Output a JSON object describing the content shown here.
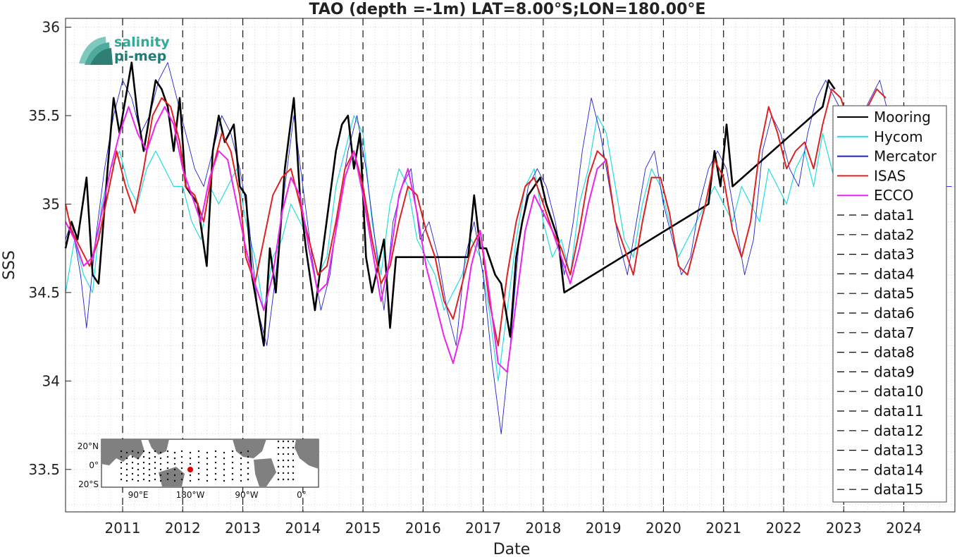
{
  "chart_data": {
    "type": "line",
    "title": "TAO (depth =-1m) LAT=8.00°S;LON=180.00°E",
    "xlabel": "Date",
    "ylabel": "SSS",
    "xlim": [
      2010.05,
      2024.85
    ],
    "ylim": [
      33.26,
      36.05
    ],
    "yticks": [
      33.5,
      34,
      34.5,
      35,
      35.5,
      36
    ],
    "xticks": [
      2011,
      2012,
      2013,
      2014,
      2015,
      2016,
      2017,
      2018,
      2019,
      2020,
      2021,
      2022,
      2023,
      2024
    ],
    "grid": "minor-dotted",
    "legend_position": "right",
    "vlines": [
      2011,
      2012,
      2013,
      2014,
      2015,
      2016,
      2017,
      2018,
      2019,
      2020,
      2021,
      2022,
      2023,
      2024
    ],
    "series": [
      {
        "name": "Mooring",
        "color": "#000000",
        "width": 2.6,
        "x": [
          2010.05,
          2010.15,
          2010.25,
          2010.4,
          2010.5,
          2010.6,
          2010.75,
          2010.85,
          2010.95,
          2011.05,
          2011.15,
          2011.25,
          2011.35,
          2011.45,
          2011.55,
          2011.65,
          2011.75,
          2011.85,
          2011.95,
          2012.05,
          2012.25,
          2012.4,
          2012.5,
          2012.6,
          2012.7,
          2012.85,
          2012.95,
          2013.05,
          2013.15,
          2013.25,
          2013.35,
          2013.45,
          2013.55,
          2013.7,
          2013.85,
          2013.95,
          2014.05,
          2014.2,
          2014.55,
          2014.65,
          2014.75,
          2014.85,
          2014.95,
          2015.05,
          2015.15,
          2015.25,
          2015.35,
          2015.45,
          2015.55,
          2016.75,
          2016.85,
          2016.95,
          2017.05,
          2017.2,
          2017.3,
          2017.45,
          2017.55,
          2017.65,
          2017.75,
          2017.85,
          2017.95,
          2018.05,
          2018.15,
          2018.25,
          2018.35,
          2020.75,
          2020.85,
          2020.95,
          2021.05,
          2021.15,
          2022.65,
          2022.75,
          2022.85
        ],
        "y": [
          34.75,
          34.9,
          34.8,
          35.15,
          34.6,
          34.55,
          35.2,
          35.6,
          35.4,
          35.6,
          35.8,
          35.5,
          35.3,
          35.5,
          35.7,
          35.65,
          35.55,
          35.3,
          35.6,
          35.1,
          35.0,
          34.65,
          35.3,
          35.5,
          35.35,
          35.45,
          35.1,
          35.05,
          34.6,
          34.4,
          34.2,
          34.75,
          34.5,
          35.2,
          35.6,
          35.05,
          34.75,
          34.4,
          35.3,
          35.45,
          35.5,
          35.2,
          35.4,
          34.7,
          34.5,
          34.65,
          34.8,
          34.3,
          34.7,
          34.7,
          35.05,
          34.75,
          34.75,
          34.6,
          34.55,
          34.25,
          34.7,
          34.9,
          35.05,
          35.1,
          35.15,
          35.0,
          34.9,
          34.8,
          34.5,
          35.0,
          35.3,
          35.1,
          35.45,
          35.1,
          35.55,
          35.7,
          35.65
        ]
      },
      {
        "name": "Hycom",
        "color": "#22dde0",
        "width": 1.2,
        "x": [
          2010.05,
          2010.2,
          2010.35,
          2010.5,
          2010.65,
          2010.8,
          2010.95,
          2011.1,
          2011.25,
          2011.4,
          2011.55,
          2011.7,
          2011.85,
          2012.0,
          2012.15,
          2012.3,
          2012.45,
          2012.6,
          2012.75,
          2012.9,
          2013.05,
          2013.2,
          2013.35,
          2013.5,
          2013.65,
          2013.8,
          2013.95,
          2014.1,
          2014.25,
          2014.4,
          2014.55,
          2014.7,
          2014.85,
          2015.0,
          2015.15,
          2015.3,
          2015.45,
          2015.6,
          2015.75,
          2015.9,
          2016.05,
          2016.2,
          2016.35,
          2016.5,
          2016.65,
          2016.8,
          2016.95,
          2017.1,
          2017.25,
          2017.4,
          2017.55,
          2017.7,
          2017.85,
          2018.0,
          2018.15,
          2018.3,
          2018.45,
          2018.6,
          2018.75,
          2018.9,
          2019.05,
          2019.2,
          2019.35,
          2019.5,
          2019.65,
          2019.8,
          2019.95,
          2020.1,
          2020.25,
          2020.4,
          2020.55,
          2020.7,
          2020.85,
          2021.0,
          2021.15,
          2021.3,
          2021.45,
          2021.6,
          2021.75,
          2021.9,
          2022.05,
          2022.2,
          2022.35,
          2022.5,
          2022.65,
          2022.8,
          2022.95,
          2023.1,
          2023.25,
          2023.4,
          2023.55,
          2023.7,
          2023.85
        ],
        "y": [
          34.5,
          34.8,
          34.6,
          34.5,
          35.0,
          35.2,
          35.3,
          35.1,
          35.0,
          35.2,
          35.3,
          35.2,
          35.1,
          35.1,
          34.9,
          34.8,
          35.1,
          35.0,
          35.1,
          35.2,
          34.9,
          34.7,
          34.4,
          34.7,
          34.8,
          35.0,
          34.9,
          34.8,
          34.6,
          34.7,
          35.1,
          35.3,
          35.5,
          35.4,
          34.9,
          34.6,
          35.0,
          35.2,
          35.1,
          34.8,
          34.7,
          34.6,
          34.4,
          34.5,
          34.6,
          34.8,
          34.7,
          34.4,
          34.0,
          34.4,
          34.8,
          35.1,
          35.2,
          34.9,
          34.7,
          34.8,
          34.6,
          35.0,
          35.2,
          35.5,
          35.4,
          35.1,
          34.8,
          34.7,
          35.0,
          35.2,
          35.1,
          34.9,
          34.7,
          34.8,
          34.9,
          35.0,
          35.1,
          35.0,
          34.9,
          35.1,
          35.0,
          34.9,
          35.2,
          35.1,
          35.0,
          35.2,
          35.3,
          35.1,
          35.4,
          35.2,
          35.0,
          35.1,
          35.2,
          35.0,
          35.3,
          35.2,
          35.1
        ]
      },
      {
        "name": "Mercator",
        "color": "#1f1fd6",
        "width": 0.9,
        "x": [
          2010.05,
          2010.15,
          2010.3,
          2010.4,
          2010.55,
          2010.7,
          2010.85,
          2011.0,
          2011.15,
          2011.3,
          2011.45,
          2011.6,
          2011.75,
          2011.9,
          2012.05,
          2012.2,
          2012.35,
          2012.5,
          2012.65,
          2012.8,
          2012.95,
          2013.1,
          2013.25,
          2013.4,
          2013.55,
          2013.7,
          2013.85,
          2014.0,
          2014.15,
          2014.3,
          2014.45,
          2014.6,
          2014.75,
          2014.9,
          2015.05,
          2015.2,
          2015.35,
          2015.5,
          2015.65,
          2015.8,
          2015.95,
          2016.1,
          2016.25,
          2016.4,
          2016.55,
          2016.7,
          2016.85,
          2017.0,
          2017.15,
          2017.3,
          2017.45,
          2017.6,
          2017.75,
          2017.9,
          2018.05,
          2018.2,
          2018.35,
          2018.5,
          2018.65,
          2018.8,
          2018.95,
          2019.1,
          2019.25,
          2019.4,
          2019.55,
          2019.7,
          2019.85,
          2020.0,
          2020.15,
          2020.3,
          2020.45,
          2020.6,
          2020.75,
          2020.9,
          2021.05,
          2021.2,
          2021.35,
          2021.5,
          2021.65,
          2021.8,
          2021.95,
          2022.1,
          2022.25,
          2022.4,
          2022.55,
          2022.7,
          2022.85,
          2023.0,
          2023.15,
          2023.3,
          2023.45,
          2023.6,
          2023.75,
          2023.9,
          2024.05,
          2024.2,
          2024.35,
          2024.5,
          2024.65,
          2024.8
        ],
        "y": [
          34.8,
          34.9,
          34.6,
          34.3,
          34.8,
          35.2,
          35.5,
          35.7,
          35.6,
          35.4,
          35.5,
          35.7,
          35.8,
          35.6,
          35.4,
          35.2,
          35.1,
          35.3,
          35.5,
          35.4,
          35.2,
          34.9,
          34.4,
          34.2,
          34.6,
          35.1,
          35.5,
          35.1,
          34.7,
          34.4,
          34.6,
          35.0,
          35.3,
          35.5,
          35.2,
          34.8,
          34.4,
          34.9,
          35.1,
          35.2,
          34.8,
          34.9,
          34.7,
          34.4,
          34.2,
          34.7,
          34.9,
          34.6,
          34.1,
          33.7,
          34.2,
          34.8,
          35.1,
          35.2,
          35.1,
          34.9,
          34.6,
          34.9,
          35.3,
          35.6,
          35.4,
          35.1,
          34.8,
          34.6,
          34.9,
          35.2,
          35.3,
          35.0,
          34.8,
          34.6,
          34.7,
          35.0,
          35.2,
          35.3,
          35.2,
          34.9,
          34.6,
          34.8,
          35.3,
          35.5,
          35.4,
          35.2,
          35.1,
          35.4,
          35.6,
          35.7,
          35.6,
          35.5,
          35.4,
          35.5,
          35.6,
          35.7,
          35.5,
          35.3,
          35.2,
          35.3,
          35.2,
          35.0,
          35.1,
          35.1
        ]
      },
      {
        "name": "ISAS",
        "color": "#e02020",
        "width": 2.0,
        "x": [
          2010.05,
          2010.15,
          2010.3,
          2010.45,
          2010.6,
          2010.75,
          2010.9,
          2011.05,
          2011.2,
          2011.35,
          2011.5,
          2011.65,
          2011.8,
          2011.95,
          2012.05,
          2012.2,
          2012.35,
          2012.5,
          2012.65,
          2012.8,
          2012.95,
          2013.05,
          2013.2,
          2013.35,
          2013.5,
          2013.65,
          2013.8,
          2013.95,
          2014.1,
          2014.25,
          2014.4,
          2014.55,
          2014.7,
          2014.85,
          2015.0,
          2015.15,
          2015.3,
          2015.45,
          2015.6,
          2015.75,
          2015.9,
          2016.05,
          2016.2,
          2016.35,
          2016.5,
          2016.65,
          2016.8,
          2016.95,
          2017.1,
          2017.25,
          2017.4,
          2017.55,
          2017.7,
          2017.85,
          2018.0,
          2018.15,
          2018.3,
          2018.45,
          2018.6,
          2018.75,
          2018.9,
          2019.05,
          2019.2,
          2019.35,
          2019.5,
          2019.65,
          2019.8,
          2019.95,
          2020.1,
          2020.25,
          2020.4,
          2020.55,
          2020.7,
          2020.85,
          2021.0,
          2021.15,
          2021.3,
          2021.45,
          2021.6,
          2021.75,
          2021.9,
          2022.05,
          2022.2,
          2022.35,
          2022.5,
          2022.65,
          2022.8,
          2022.95,
          2023.1,
          2023.25,
          2023.4,
          2023.55,
          2023.7
        ],
        "y": [
          35.0,
          34.85,
          34.75,
          34.65,
          34.8,
          35.05,
          35.3,
          35.1,
          34.95,
          35.2,
          35.5,
          35.6,
          35.55,
          35.35,
          35.1,
          35.05,
          34.9,
          35.2,
          35.4,
          35.3,
          35.05,
          34.7,
          34.55,
          34.8,
          35.05,
          35.15,
          35.2,
          35.0,
          34.8,
          34.6,
          34.65,
          34.9,
          35.2,
          35.3,
          35.1,
          34.8,
          34.55,
          34.65,
          34.9,
          35.1,
          35.05,
          34.85,
          34.7,
          34.45,
          34.35,
          34.55,
          34.75,
          34.85,
          34.45,
          34.2,
          34.6,
          34.9,
          35.1,
          35.15,
          35.0,
          34.85,
          34.75,
          34.6,
          34.85,
          35.15,
          35.3,
          35.25,
          34.9,
          34.75,
          34.6,
          34.9,
          35.15,
          35.15,
          34.95,
          34.65,
          34.6,
          34.8,
          35.0,
          35.25,
          35.15,
          34.85,
          34.7,
          34.9,
          35.3,
          35.55,
          35.4,
          35.2,
          35.3,
          35.35,
          35.2,
          35.45,
          35.65,
          35.6,
          35.45,
          35.4,
          35.55,
          35.65,
          35.6
        ]
      },
      {
        "name": "ECCO",
        "color": "#ee22ee",
        "width": 2.0,
        "x": [
          2010.05,
          2010.2,
          2010.35,
          2010.5,
          2010.65,
          2010.8,
          2010.95,
          2011.1,
          2011.25,
          2011.4,
          2011.55,
          2011.7,
          2011.85,
          2012.0,
          2012.15,
          2012.3,
          2012.45,
          2012.6,
          2012.75,
          2012.9,
          2013.05,
          2013.2,
          2013.35,
          2013.5,
          2013.65,
          2013.8,
          2013.95,
          2014.1,
          2014.25,
          2014.4,
          2014.55,
          2014.7,
          2014.85,
          2015.0,
          2015.15,
          2015.3,
          2015.45,
          2015.6,
          2015.75,
          2015.9,
          2016.05,
          2016.2,
          2016.35,
          2016.5,
          2016.65,
          2016.8,
          2016.95,
          2017.1,
          2017.25,
          2017.4,
          2017.55,
          2017.7,
          2017.85,
          2018.0,
          2018.15,
          2018.3,
          2018.45,
          2018.6,
          2018.75,
          2018.9,
          2019.05
        ],
        "y": [
          34.9,
          34.8,
          34.65,
          34.7,
          34.95,
          35.2,
          35.4,
          35.55,
          35.4,
          35.3,
          35.45,
          35.55,
          35.45,
          35.2,
          35.05,
          34.9,
          35.15,
          35.3,
          35.25,
          35.0,
          34.75,
          34.55,
          34.4,
          34.6,
          34.95,
          35.15,
          35.05,
          34.75,
          34.5,
          34.55,
          34.85,
          35.15,
          35.3,
          35.05,
          34.75,
          34.45,
          34.7,
          35.05,
          35.2,
          34.95,
          34.65,
          34.45,
          34.25,
          34.1,
          34.3,
          34.65,
          34.85,
          34.5,
          34.1,
          34.05,
          34.45,
          34.85,
          35.05,
          34.95,
          34.85,
          34.7,
          34.55,
          34.75,
          35.0,
          35.2,
          35.25
        ]
      },
      {
        "name": "data1",
        "color": "#000000",
        "dashed": true
      },
      {
        "name": "data2",
        "color": "#000000",
        "dashed": true
      },
      {
        "name": "data3",
        "color": "#000000",
        "dashed": true
      },
      {
        "name": "data4",
        "color": "#000000",
        "dashed": true
      },
      {
        "name": "data5",
        "color": "#000000",
        "dashed": true
      },
      {
        "name": "data6",
        "color": "#000000",
        "dashed": true
      },
      {
        "name": "data7",
        "color": "#000000",
        "dashed": true
      },
      {
        "name": "data8",
        "color": "#000000",
        "dashed": true
      },
      {
        "name": "data9",
        "color": "#000000",
        "dashed": true
      },
      {
        "name": "data10",
        "color": "#000000",
        "dashed": true
      },
      {
        "name": "data11",
        "color": "#000000",
        "dashed": true
      },
      {
        "name": "data12",
        "color": "#000000",
        "dashed": true
      },
      {
        "name": "data13",
        "color": "#000000",
        "dashed": true
      },
      {
        "name": "data14",
        "color": "#000000",
        "dashed": true
      },
      {
        "name": "data15",
        "color": "#000000",
        "dashed": true
      }
    ]
  },
  "logo": {
    "line1": "salinity",
    "line2": "pi-mep"
  },
  "minimap": {
    "lat_labels": [
      "20°N",
      "0°",
      "20°S"
    ],
    "lon_labels": [
      "90°E",
      "180°W",
      "90°W",
      "0°"
    ],
    "highlight": "8°S 180°E"
  }
}
